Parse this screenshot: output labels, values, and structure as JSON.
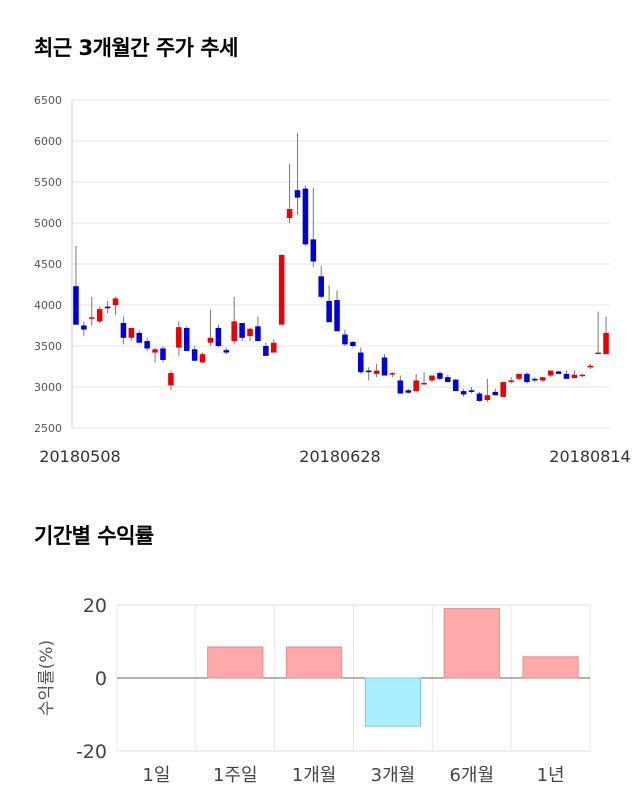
{
  "sections": {
    "candle_title": "최근 3개월간 주가 추세",
    "returns_title": "기간별 수익률"
  },
  "chart_data": [
    {
      "type": "candlestick",
      "title": "최근 3개월간 주가 추세",
      "ylim": [
        2500,
        6500
      ],
      "yticks": [
        2500,
        3000,
        3500,
        4000,
        4500,
        5000,
        5500,
        6000,
        6500
      ],
      "xticks": [
        "20180508",
        "20180628",
        "20180814"
      ],
      "grid": true,
      "colors": {
        "up": "#ee0000",
        "down": "#0000dd",
        "wick": "#777777"
      },
      "candles": [
        [
          4230,
          4720,
          3760,
          3760
        ],
        [
          3750,
          3800,
          3620,
          3700
        ],
        [
          3840,
          4100,
          3750,
          3850
        ],
        [
          3800,
          3980,
          3780,
          3950
        ],
        [
          3980,
          4050,
          3900,
          3960
        ],
        [
          4000,
          4100,
          3880,
          4080
        ],
        [
          3780,
          3860,
          3520,
          3600
        ],
        [
          3600,
          3720,
          3560,
          3720
        ],
        [
          3660,
          3690,
          3540,
          3540
        ],
        [
          3560,
          3600,
          3440,
          3470
        ],
        [
          3420,
          3480,
          3300,
          3460
        ],
        [
          3470,
          3500,
          3300,
          3330
        ],
        [
          3020,
          3200,
          2960,
          3170
        ],
        [
          3480,
          3800,
          3380,
          3730
        ],
        [
          3720,
          3740,
          3460,
          3440
        ],
        [
          3460,
          3500,
          3360,
          3320
        ],
        [
          3300,
          3420,
          3290,
          3400
        ],
        [
          3540,
          3940,
          3500,
          3600
        ],
        [
          3720,
          3760,
          3480,
          3500
        ],
        [
          3450,
          3480,
          3400,
          3420
        ],
        [
          3560,
          4100,
          3520,
          3800
        ],
        [
          3780,
          3780,
          3560,
          3600
        ],
        [
          3620,
          3720,
          3560,
          3710
        ],
        [
          3740,
          3860,
          3560,
          3560
        ],
        [
          3500,
          3540,
          3380,
          3380
        ],
        [
          3420,
          3580,
          3420,
          3540
        ],
        [
          3760,
          4620,
          3760,
          4610
        ],
        [
          5060,
          5720,
          5000,
          5170
        ],
        [
          5400,
          6100,
          5100,
          5310
        ],
        [
          5420,
          5460,
          4720,
          4740
        ],
        [
          4800,
          5430,
          4460,
          4530
        ],
        [
          4350,
          4480,
          4080,
          4100
        ],
        [
          4050,
          4240,
          3790,
          3790
        ],
        [
          4060,
          4180,
          3700,
          3680
        ],
        [
          3640,
          3700,
          3500,
          3520
        ],
        [
          3550,
          3560,
          3480,
          3500
        ],
        [
          3420,
          3480,
          3160,
          3180
        ],
        [
          3200,
          3240,
          3080,
          3180
        ],
        [
          3160,
          3280,
          3120,
          3200
        ],
        [
          3360,
          3400,
          3160,
          3140
        ],
        [
          3160,
          3180,
          3120,
          3170
        ],
        [
          3080,
          3140,
          2920,
          2920
        ],
        [
          2960,
          2980,
          2920,
          2930
        ],
        [
          2950,
          3160,
          2940,
          3080
        ],
        [
          3040,
          3180,
          3020,
          3050
        ],
        [
          3080,
          3140,
          3060,
          3140
        ],
        [
          3170,
          3190,
          3080,
          3100
        ],
        [
          3120,
          3150,
          3080,
          3060
        ],
        [
          3090,
          3100,
          2960,
          2950
        ],
        [
          2950,
          2980,
          2880,
          2910
        ],
        [
          2960,
          3000,
          2920,
          2940
        ],
        [
          2920,
          2940,
          2820,
          2830
        ],
        [
          2840,
          3100,
          2820,
          2900
        ],
        [
          2940,
          2980,
          2900,
          2900
        ],
        [
          2880,
          3060,
          2880,
          3060
        ],
        [
          3060,
          3120,
          3040,
          3080
        ],
        [
          3100,
          3160,
          3080,
          3160
        ],
        [
          3160,
          3180,
          3040,
          3060
        ],
        [
          3100,
          3120,
          3060,
          3080
        ],
        [
          3080,
          3120,
          3060,
          3120
        ],
        [
          3140,
          3200,
          3120,
          3200
        ],
        [
          3190,
          3200,
          3160,
          3160
        ],
        [
          3160,
          3200,
          3100,
          3100
        ],
        [
          3110,
          3200,
          3100,
          3150
        ],
        [
          3140,
          3160,
          3120,
          3150
        ],
        [
          3240,
          3280,
          3220,
          3260
        ],
        [
          3420,
          3920,
          3400,
          3420
        ],
        [
          3400,
          3860,
          3400,
          3660
        ]
      ]
    },
    {
      "type": "bar",
      "title": "기간별 수익률",
      "ylabel": "수익률(%)",
      "ylim": [
        -20,
        20
      ],
      "yticks": [
        -20,
        0,
        20
      ],
      "categories": [
        "1일",
        "1주일",
        "1개월",
        "3개월",
        "6개월",
        "1년"
      ],
      "values": [
        0,
        8.5,
        8.5,
        -13.2,
        19,
        5.8
      ],
      "colors": {
        "positive": "#ffaaaa",
        "negative": "#aaeeff",
        "positive_edge": "#e88a8a",
        "negative_edge": "#7ec8d8"
      }
    }
  ]
}
